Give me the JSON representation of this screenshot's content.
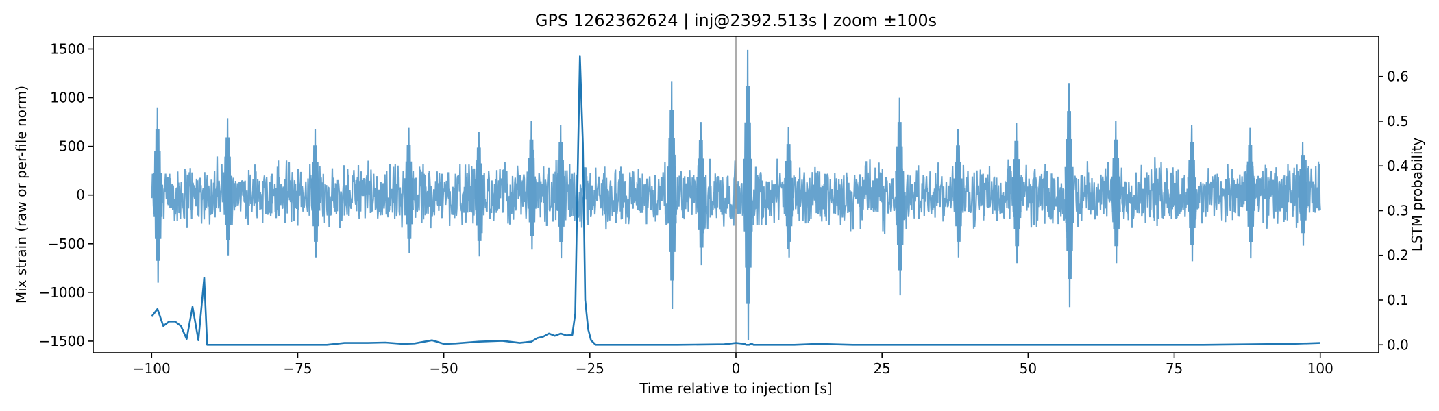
{
  "chart_data": {
    "type": "line",
    "title": "GPS 1262362624 | inj@2392.513s | zoom ±100s",
    "xlabel": "Time relative to injection [s]",
    "ylabel_left": "Mix strain (raw or per-file norm)",
    "ylabel_right": "LSTM probability",
    "xlim": [
      -110,
      110
    ],
    "ylim_left": [
      -1620,
      1630
    ],
    "ylim_right": [
      -0.018,
      0.69
    ],
    "x_ticks": [
      -100,
      -75,
      -50,
      -25,
      0,
      25,
      50,
      75,
      100
    ],
    "x_tick_labels": [
      "−100",
      "−75",
      "−50",
      "−25",
      "0",
      "25",
      "50",
      "75",
      "100"
    ],
    "y_left_ticks": [
      -1500,
      -1000,
      -500,
      0,
      500,
      1000,
      1500
    ],
    "y_left_tick_labels": [
      "−1500",
      "−1000",
      "−500",
      "0",
      "500",
      "1000",
      "1500"
    ],
    "y_right_ticks": [
      0.0,
      0.1,
      0.2,
      0.3,
      0.4,
      0.5,
      0.6
    ],
    "y_right_tick_labels": [
      "0.0",
      "0.1",
      "0.2",
      "0.3",
      "0.4",
      "0.5",
      "0.6"
    ],
    "grid": false,
    "injection_marker_x": 0,
    "strain_envelope": {
      "color": "#5f9ecb",
      "x_range": [
        -100,
        100
      ],
      "typical_amplitude": 350,
      "peaks": [
        {
          "x": -99,
          "max": 900,
          "min": -900
        },
        {
          "x": -87,
          "max": 790,
          "min": -620
        },
        {
          "x": -72,
          "max": 680,
          "min": -640
        },
        {
          "x": -56,
          "max": 690,
          "min": -600
        },
        {
          "x": -44,
          "max": 650,
          "min": -630
        },
        {
          "x": -35,
          "max": 760,
          "min": -560
        },
        {
          "x": -30,
          "max": 720,
          "min": -650
        },
        {
          "x": -11,
          "max": 1170,
          "min": -1170
        },
        {
          "x": -6,
          "max": 750,
          "min": -720
        },
        {
          "x": 2,
          "max": 1490,
          "min": -1490
        },
        {
          "x": 9,
          "max": 700,
          "min": -640
        },
        {
          "x": 28,
          "max": 1000,
          "min": -1030
        },
        {
          "x": 38,
          "max": 680,
          "min": -640
        },
        {
          "x": 48,
          "max": 740,
          "min": -700
        },
        {
          "x": 57,
          "max": 1150,
          "min": -1150
        },
        {
          "x": 65,
          "max": 760,
          "min": -700
        },
        {
          "x": 78,
          "max": 720,
          "min": -680
        },
        {
          "x": 88,
          "max": 690,
          "min": -650
        },
        {
          "x": 97,
          "max": 540,
          "min": -520
        }
      ]
    },
    "lstm_probability": {
      "color": "#1f77b4",
      "x": [
        -100,
        -99,
        -98,
        -97,
        -96,
        -95,
        -94,
        -93,
        -92,
        -91,
        -90.5,
        -90,
        -88,
        -80,
        -70,
        -67,
        -63,
        -60,
        -57,
        -55,
        -52,
        -50,
        -48,
        -44,
        -40,
        -37,
        -35,
        -34,
        -33,
        -32,
        -31,
        -30,
        -29,
        -28,
        -27.5,
        -27,
        -26.7,
        -26.2,
        -25.8,
        -25.3,
        -24.8,
        -24,
        -20,
        -10,
        -2,
        0,
        1.5,
        1.7,
        2,
        2.3,
        2.6,
        3,
        10,
        14,
        20,
        30,
        40,
        60,
        80,
        95,
        100
      ],
      "y": [
        0.063,
        0.08,
        0.042,
        0.052,
        0.052,
        0.042,
        0.013,
        0.085,
        0.01,
        0.15,
        0.0,
        0.0,
        0.0,
        0.0,
        0.0,
        0.004,
        0.004,
        0.005,
        0.002,
        0.003,
        0.01,
        0.002,
        0.003,
        0.007,
        0.009,
        0.004,
        0.007,
        0.015,
        0.018,
        0.025,
        0.02,
        0.025,
        0.021,
        0.022,
        0.07,
        0.45,
        0.645,
        0.45,
        0.1,
        0.035,
        0.01,
        0.0,
        0.0,
        0.0,
        0.001,
        0.004,
        0.002,
        0.0,
        0.0,
        0.0,
        0.003,
        0.0,
        0.0,
        0.002,
        0.0,
        0.0,
        0.0,
        0.0,
        0.0,
        0.002,
        0.004
      ]
    }
  }
}
